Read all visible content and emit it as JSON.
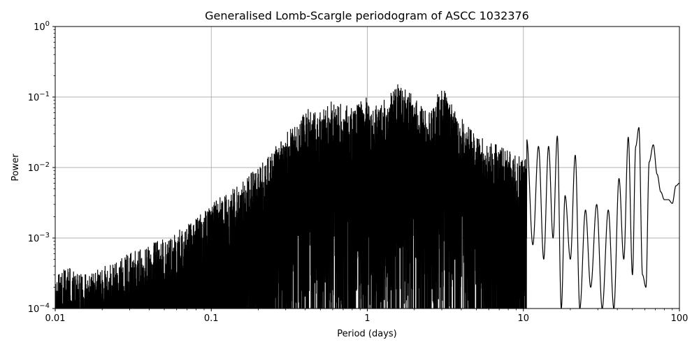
{
  "chart_data": {
    "type": "line",
    "title": "Generalised Lomb-Scargle periodogram of ASCC 1032376",
    "xlabel": "Period (days)",
    "ylabel": "Power",
    "xscale": "log",
    "yscale": "log",
    "xlim": [
      0.01,
      100
    ],
    "ylim": [
      0.0001,
      1
    ],
    "grid": true,
    "line_color": "#000000",
    "x_ticks": [
      {
        "value": 0.01,
        "label": "0.01"
      },
      {
        "value": 0.1,
        "label": "0.1"
      },
      {
        "value": 1,
        "label": "1"
      },
      {
        "value": 10,
        "label": "10"
      },
      {
        "value": 100,
        "label": "100"
      }
    ],
    "y_ticks": [
      {
        "value": 0.0001,
        "base": "10",
        "exp": "−4"
      },
      {
        "value": 0.001,
        "base": "10",
        "exp": "−3"
      },
      {
        "value": 0.01,
        "base": "10",
        "exp": "−2"
      },
      {
        "value": 0.1,
        "base": "10",
        "exp": "−1"
      },
      {
        "value": 1,
        "base": "10",
        "exp": "0"
      }
    ],
    "envelope": {
      "description_free": true,
      "period": [
        0.01,
        0.012,
        0.015,
        0.02,
        0.03,
        0.04,
        0.05,
        0.07,
        0.1,
        0.15,
        0.2,
        0.3,
        0.4,
        0.5,
        0.6,
        0.8,
        1.0,
        1.2,
        1.5,
        2.0,
        2.5,
        3.0,
        4.0,
        5.0,
        7.0,
        10.0
      ],
      "peak_power": [
        0.0003,
        0.0004,
        0.0003,
        0.0004,
        0.0006,
        0.0008,
        0.001,
        0.0015,
        0.003,
        0.006,
        0.01,
        0.03,
        0.07,
        0.06,
        0.09,
        0.07,
        0.1,
        0.07,
        0.18,
        0.1,
        0.06,
        0.15,
        0.05,
        0.03,
        0.02,
        0.015
      ]
    },
    "resolved_series": {
      "period": [
        10.5,
        11.5,
        12.5,
        13.5,
        14.5,
        15.5,
        16.5,
        17.5,
        18.5,
        20.0,
        21.5,
        23.0,
        25.0,
        27.0,
        29.5,
        32.0,
        35.0,
        38.0,
        41.0,
        44.0,
        47.0,
        50.0,
        52.5,
        55.0,
        58.0,
        61.0,
        64.0,
        68.0,
        72.0,
        76.0,
        80.0,
        85.0,
        90.0,
        95.0,
        100.0
      ],
      "power": [
        0.025,
        0.0008,
        0.02,
        0.0005,
        0.02,
        0.001,
        0.028,
        0.0001,
        0.004,
        0.0005,
        0.015,
        0.0001,
        0.0025,
        0.0002,
        0.003,
        0.0001,
        0.0025,
        0.0001,
        0.007,
        0.0005,
        0.027,
        0.0003,
        0.02,
        0.037,
        0.0003,
        0.0002,
        0.012,
        0.021,
        0.008,
        0.0045,
        0.0035,
        0.0035,
        0.0031,
        0.0055,
        0.006
      ]
    }
  }
}
